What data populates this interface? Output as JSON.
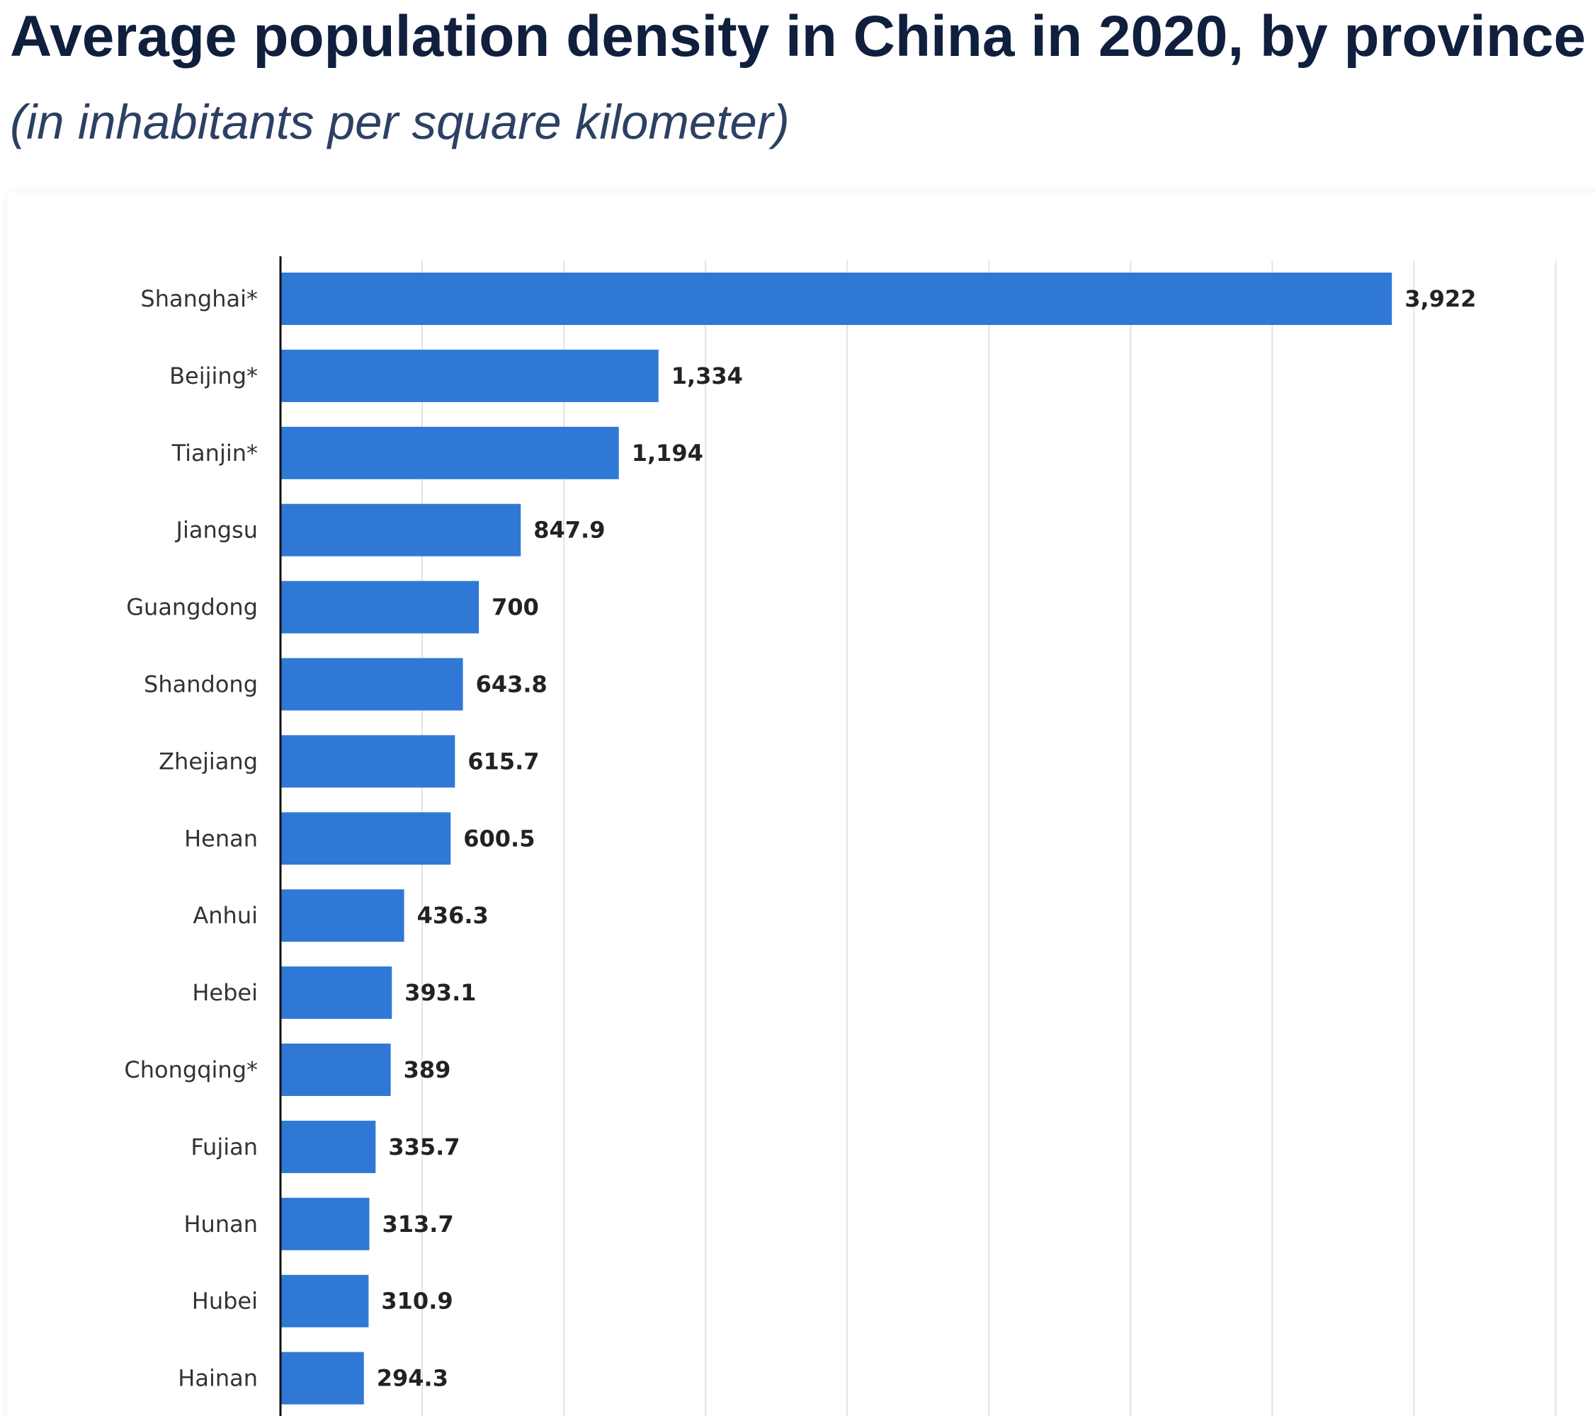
{
  "title": "Average population density in China in 2020, by province",
  "subtitle": "(in inhabitants per square kilometer)",
  "chart_data": {
    "type": "bar",
    "orientation": "horizontal",
    "title": "Average population density in China in 2020, by province",
    "subtitle": "(in inhabitants per square kilometer)",
    "categories": [
      "Shanghai*",
      "Beijing*",
      "Tianjin*",
      "Jiangsu",
      "Guangdong",
      "Shandong",
      "Zhejiang",
      "Henan",
      "Anhui",
      "Hebei",
      "Chongqing*",
      "Fujian",
      "Hunan",
      "Hubei",
      "Hainan"
    ],
    "values": [
      3922,
      1334,
      1194,
      847.9,
      700,
      643.8,
      615.7,
      600.5,
      436.3,
      393.1,
      389,
      335.7,
      313.7,
      310.9,
      294.3
    ],
    "value_labels": [
      "3,922",
      "1,334",
      "1,194",
      "847.9",
      "700",
      "643.8",
      "615.7",
      "600.5",
      "436.3",
      "393.1",
      "389",
      "335.7",
      "313.7",
      "310.9",
      "294.3"
    ],
    "xlim": [
      0,
      4500
    ],
    "grid": true,
    "bar_color": "#2f78d6"
  }
}
